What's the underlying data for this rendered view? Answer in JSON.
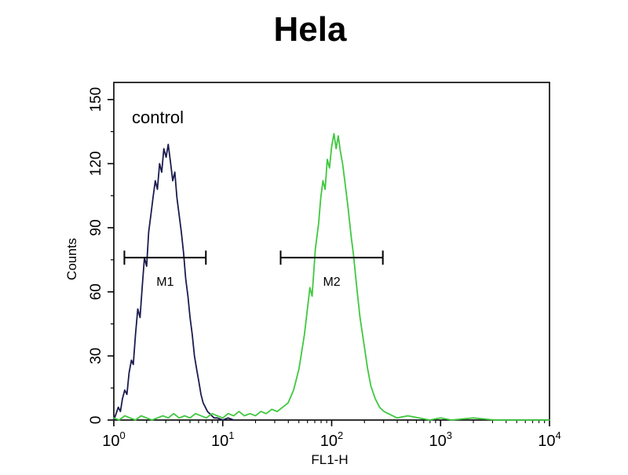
{
  "chart_data": {
    "type": "line",
    "subtype": "flow-cytometry-histogram",
    "title": "Hela",
    "xlabel": "FL1-H",
    "ylabel": "Counts",
    "x_scale": "log10",
    "xlim_log10": [
      0,
      4
    ],
    "x_ticks_exponents": [
      0,
      1,
      2,
      3,
      4
    ],
    "x_tick_base": "10",
    "y_ticks": [
      0,
      30,
      60,
      90,
      120,
      150
    ],
    "ylim": [
      0,
      158
    ],
    "grid": false,
    "legend": "none",
    "annotation": {
      "label": "control"
    },
    "series": [
      {
        "name": "control",
        "color": "#1c1c4e",
        "x": [
          1.0,
          1.05,
          1.1,
          1.15,
          1.2,
          1.26,
          1.32,
          1.38,
          1.45,
          1.51,
          1.58,
          1.66,
          1.74,
          1.82,
          1.91,
          2.0,
          2.09,
          2.19,
          2.29,
          2.4,
          2.51,
          2.63,
          2.75,
          2.88,
          3.02,
          3.16,
          3.31,
          3.47,
          3.63,
          3.8,
          3.98,
          4.17,
          4.37,
          4.57,
          4.79,
          5.01,
          5.25,
          5.5,
          5.75,
          6.03,
          6.31,
          6.61,
          6.92,
          7.24,
          7.59,
          7.94,
          8.32,
          8.91,
          10.0,
          11.2,
          12.6
        ],
        "counts": [
          0,
          3,
          6,
          4,
          10,
          14,
          12,
          22,
          28,
          26,
          40,
          52,
          48,
          62,
          76,
          72,
          88,
          96,
          104,
          112,
          108,
          120,
          116,
          127,
          123,
          129,
          121,
          112,
          116,
          104,
          96,
          88,
          78,
          66,
          58,
          48,
          40,
          30,
          24,
          18,
          12,
          8,
          6,
          4,
          3,
          2,
          1,
          1,
          0,
          1,
          0
        ]
      },
      {
        "name": "",
        "color": "#3fc83f",
        "x": [
          1.0,
          1.12,
          1.26,
          1.41,
          1.58,
          1.78,
          2.0,
          2.24,
          2.51,
          2.82,
          3.16,
          3.55,
          3.98,
          4.47,
          5.01,
          5.62,
          6.31,
          7.08,
          7.94,
          8.91,
          10.0,
          11.2,
          12.6,
          14.1,
          15.8,
          17.8,
          20.0,
          22.4,
          25.1,
          28.2,
          31.6,
          35.5,
          39.8,
          44.7,
          50.1,
          56.2,
          63.1,
          66.1,
          70.8,
          75.9,
          79.4,
          83.2,
          87.1,
          91.2,
          95.5,
          100,
          105,
          110,
          115,
          120,
          126,
          132,
          141,
          151,
          158,
          170,
          182,
          200,
          214,
          229,
          251,
          275,
          302,
          331,
          363,
          398,
          501,
          631,
          794,
          1000,
          1259,
          1995,
          3162,
          5012,
          10000
        ],
        "counts": [
          1,
          0,
          2,
          1,
          0,
          2,
          1,
          0,
          1,
          2,
          1,
          3,
          1,
          2,
          1,
          3,
          2,
          1,
          3,
          2,
          1,
          3,
          2,
          4,
          2,
          3,
          2,
          4,
          3,
          5,
          4,
          6,
          8,
          14,
          24,
          40,
          62,
          58,
          80,
          92,
          104,
          112,
          108,
          122,
          118,
          128,
          134,
          127,
          133,
          126,
          120,
          112,
          100,
          86,
          78,
          62,
          48,
          34,
          24,
          16,
          10,
          6,
          4,
          3,
          2,
          1,
          2,
          1,
          0,
          1,
          0,
          1,
          0,
          0,
          0
        ]
      }
    ],
    "markers": [
      {
        "label": "M1",
        "x_from": 1.25,
        "x_to": 7.0,
        "y": 76
      },
      {
        "label": "M2",
        "x_from": 34,
        "x_to": 295,
        "y": 76
      }
    ]
  }
}
